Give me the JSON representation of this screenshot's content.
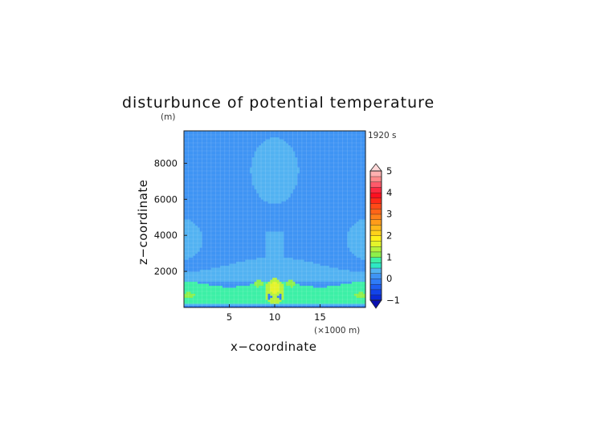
{
  "chart_data": {
    "type": "heatmap",
    "title": "disturbunce of potential temperature",
    "y_unit": "(m)",
    "time_label": "1920 s",
    "xlabel": "x−coordinate",
    "ylabel": "z−coordinate",
    "x_unit": "(×1000 m)",
    "xlim": [
      0,
      20
    ],
    "ylim": [
      0,
      9800
    ],
    "x_ticks": [
      {
        "value": 5,
        "label": "5"
      },
      {
        "value": 10,
        "label": "10"
      },
      {
        "value": 15,
        "label": "15"
      }
    ],
    "y_ticks": [
      {
        "value": 2000,
        "label": "2000"
      },
      {
        "value": 4000,
        "label": "4000"
      },
      {
        "value": 6000,
        "label": "6000"
      },
      {
        "value": 8000,
        "label": "8000"
      }
    ],
    "colorbar": {
      "levels": [
        -1,
        -0.75,
        -0.5,
        -0.25,
        0,
        0.25,
        0.5,
        0.75,
        1,
        1.25,
        1.5,
        1.75,
        2,
        2.25,
        2.5,
        2.75,
        3,
        3.25,
        3.5,
        3.75,
        4,
        4.25,
        4.5,
        4.75,
        5
      ],
      "colors": [
        "#0a2ad8",
        "#1243e8",
        "#1e5ef2",
        "#2f7cf6",
        "#3f94f4",
        "#52b2f2",
        "#2ee8c4",
        "#3df0a6",
        "#8ef04a",
        "#b6f23c",
        "#e4f42a",
        "#fff01a",
        "#ffd21a",
        "#ffb81a",
        "#ff9c1a",
        "#ff801a",
        "#ff6418",
        "#ff4a18",
        "#ff2a18",
        "#ff1020",
        "#ff2a40",
        "#ff5a6a",
        "#ff8a8a",
        "#ffb0b0"
      ],
      "under_color": "#0a10b0",
      "over_color": "#ffd8d8",
      "tick_labels": [
        "−1",
        "0",
        "1",
        "2",
        "3",
        "4",
        "5"
      ],
      "tick_values": [
        -1,
        0,
        1,
        2,
        3,
        4,
        5
      ]
    },
    "background_value": 0.05,
    "features": [
      {
        "kind": "surface_warm_layer",
        "value": 0.75,
        "x_range": [
          0,
          20
        ],
        "z_range": [
          200,
          1300
        ]
      },
      {
        "kind": "central_plume",
        "value": 1.25,
        "center_x": 10,
        "center_z": 900
      },
      {
        "kind": "central_plume_core",
        "value": 1.7,
        "center_x": 10,
        "center_z": 1100
      },
      {
        "kind": "side_warm_blobs",
        "value": 1.1,
        "x_centers": [
          8.2,
          11.8
        ],
        "center_z": 1350
      },
      {
        "kind": "edge_warm_blobs",
        "value": 1.1,
        "x_centers": [
          0.5,
          19.5
        ],
        "center_z": 700
      },
      {
        "kind": "cold_blobs",
        "value": -0.2,
        "x_centers": [
          9.4,
          10.6
        ],
        "center_z": 600
      },
      {
        "kind": "upper_warm_region",
        "value": 0.35,
        "center_x": 10,
        "center_z": 7600
      },
      {
        "kind": "side_upper_regions",
        "value": 0.33,
        "x_centers": [
          0,
          20
        ],
        "center_z": 3800
      },
      {
        "kind": "mid_layer",
        "value": 0.3,
        "z_range": [
          1500,
          2400
        ]
      }
    ]
  }
}
